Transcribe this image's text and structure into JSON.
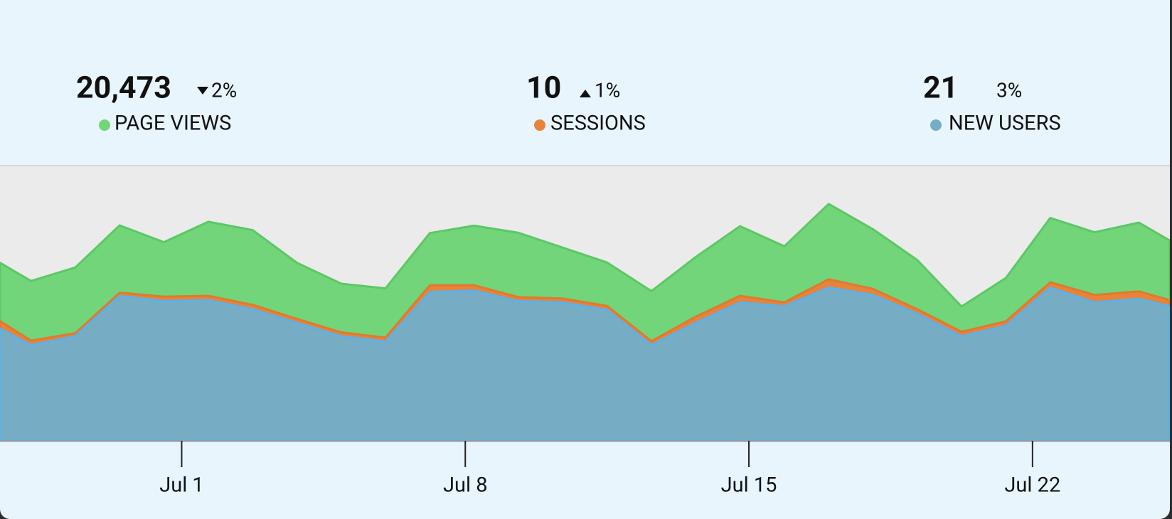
{
  "stats": [
    {
      "value": "20,473",
      "change": "2%",
      "direction": "down"
    },
    {
      "value": "10",
      "change": "1%",
      "direction": "up"
    },
    {
      "value": "21",
      "change": "3%"
    }
  ],
  "chart_data": {
    "type": "stacked-area",
    "x": [
      0.3,
      1,
      2,
      3,
      4,
      5,
      6,
      7,
      8,
      9,
      10,
      11,
      12,
      13,
      14,
      15,
      16,
      17,
      18,
      19,
      20,
      21,
      22,
      23,
      24,
      25,
      26,
      26.7
    ],
    "xlim": [
      0.3,
      26.7
    ],
    "xticks": [
      {
        "value": 4.4,
        "label": "Jul 1"
      },
      {
        "value": 10.8,
        "label": "Jul 8"
      },
      {
        "value": 17.2,
        "label": "Jul 15"
      },
      {
        "value": 23.6,
        "label": "Jul 22"
      }
    ],
    "ylim": [
      0,
      100
    ],
    "series": [
      {
        "name": "PAGE VIEWS",
        "color": "#72d57a",
        "values": [
          21.2,
          21.7,
          23.9,
          24.5,
          19.8,
          26.9,
          27.2,
          20.4,
          17.7,
          17.9,
          19.0,
          21.7,
          23.4,
          18.5,
          15.8,
          18.2,
          21.7,
          25.3,
          20.4,
          27.4,
          21.7,
          17.9,
          9.2,
          15.8,
          23.4,
          22.8,
          25.0,
          21.7
        ]
      },
      {
        "name": "SESSIONS",
        "color": "#e8833a",
        "values": [
          2.7,
          1.6,
          1.1,
          1.1,
          1.6,
          1.6,
          1.6,
          1.4,
          1.4,
          1.4,
          2.4,
          1.9,
          1.4,
          1.4,
          1.4,
          1.4,
          2.2,
          2.4,
          1.4,
          3.0,
          2.2,
          1.6,
          1.6,
          1.6,
          1.9,
          2.7,
          2.7,
          2.2
        ]
      },
      {
        "name": "NEW USERS",
        "color": "#76adc4",
        "values": [
          40.8,
          34.8,
          38.0,
          52.7,
          50.8,
          51.1,
          47.8,
          42.9,
          38.0,
          36.1,
          54.1,
          54.6,
          50.8,
          50.3,
          47.6,
          34.8,
          42.9,
          50.3,
          48.9,
          55.7,
          53.0,
          46.2,
          38.0,
          41.8,
          55.7,
          50.3,
          51.6,
          48.9
        ]
      }
    ]
  }
}
